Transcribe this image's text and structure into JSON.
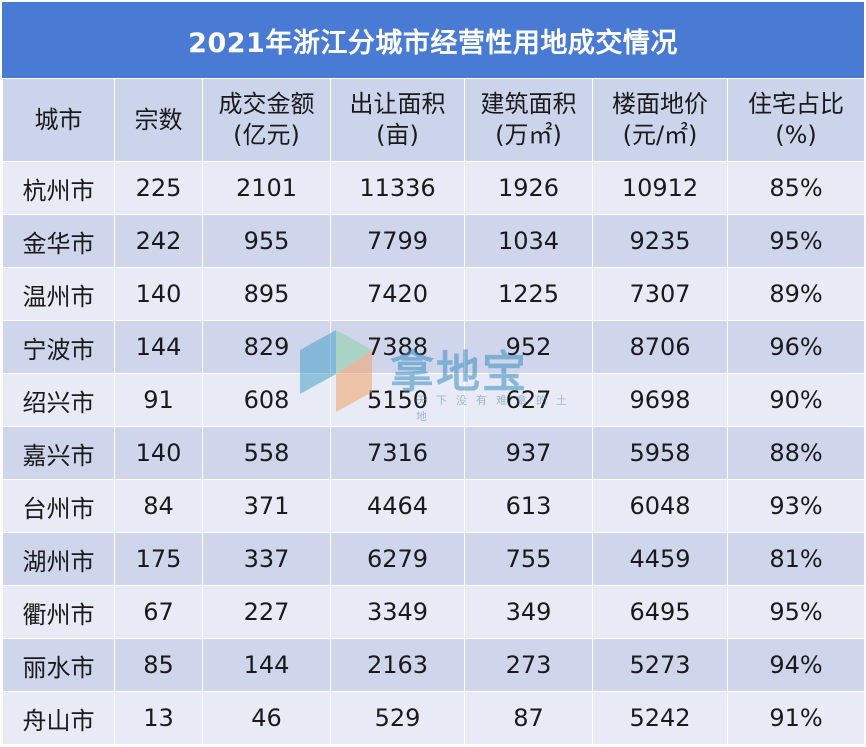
{
  "title": "2021年浙江分城市经营性用地成交情况",
  "headers": [
    {
      "line1": "城市",
      "line2": ""
    },
    {
      "line1": "宗数",
      "line2": ""
    },
    {
      "line1": "成交金额",
      "line2": "(亿元)"
    },
    {
      "line1": "出让面积",
      "line2": "(亩)"
    },
    {
      "line1": "建筑面积",
      "line2": "(万㎡)"
    },
    {
      "line1": "楼面地价",
      "line2": "(元/㎡)"
    },
    {
      "line1": "住宅占比",
      "line2": "(%)"
    }
  ],
  "rows": [
    [
      "杭州市",
      "225",
      "2101",
      "11336",
      "1926",
      "10912",
      "85%"
    ],
    [
      "金华市",
      "242",
      "955",
      "7799",
      "1034",
      "9235",
      "95%"
    ],
    [
      "温州市",
      "140",
      "895",
      "7420",
      "1225",
      "7307",
      "89%"
    ],
    [
      "宁波市",
      "144",
      "829",
      "7388",
      "952",
      "8706",
      "96%"
    ],
    [
      "绍兴市",
      "91",
      "608",
      "5150",
      "627",
      "9698",
      "90%"
    ],
    [
      "嘉兴市",
      "140",
      "558",
      "7316",
      "937",
      "5958",
      "88%"
    ],
    [
      "台州市",
      "84",
      "371",
      "4464",
      "613",
      "6048",
      "93%"
    ],
    [
      "湖州市",
      "175",
      "337",
      "6279",
      "755",
      "4459",
      "81%"
    ],
    [
      "衢州市",
      "67",
      "227",
      "3349",
      "349",
      "6495",
      "95%"
    ],
    [
      "丽水市",
      "85",
      "144",
      "2163",
      "273",
      "5273",
      "94%"
    ],
    [
      "舟山市",
      "13",
      "46",
      "529",
      "87",
      "5242",
      "91%"
    ]
  ],
  "watermark": {
    "brand": "拿地宝",
    "slogan": "天下没有难拿的土地",
    "logo_colors": [
      "#4aa1c9",
      "#8fcfa8",
      "#f2a36a"
    ]
  },
  "colors": {
    "title_bg": "#4a7bd4",
    "header_bg": "#cbd4ea",
    "row_light": "#e8ebf5",
    "row_dark": "#cfd6ec"
  }
}
